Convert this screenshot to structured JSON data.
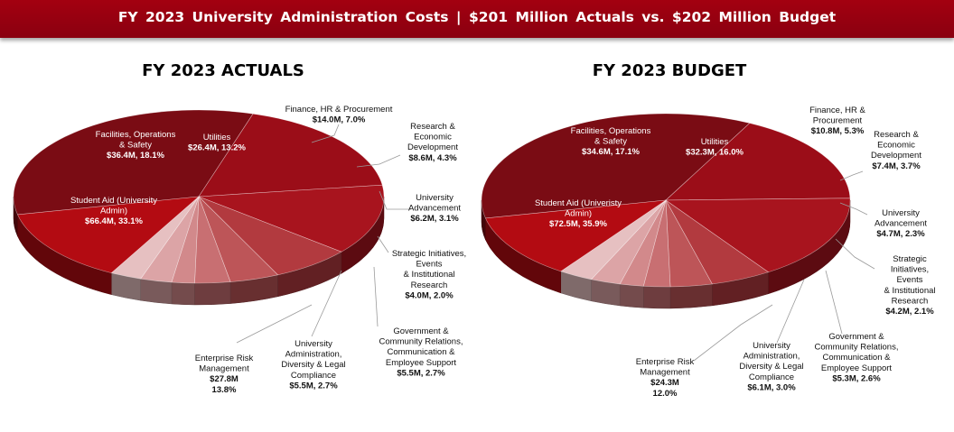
{
  "banner": "FY 2023 University  Administration  Costs | $201 Million  Actuals vs. $202 Million  Budget",
  "chart_data": [
    {
      "type": "pie",
      "title": "FY 2023 ACTUALS",
      "slices": [
        {
          "name": "Student Aid (University Admin)",
          "value_label": "$66.4M, 33.1%",
          "value": 66.4,
          "percent": 33.1,
          "color": "#7a0c14"
        },
        {
          "name": "Facilities, Operations & Safety",
          "value_label": "$36.4M, 18.1%",
          "value": 36.4,
          "percent": 18.1,
          "color": "#9b0d18"
        },
        {
          "name": "Utilities",
          "value_label": "$26.4M, 13.2%",
          "value": 26.4,
          "percent": 13.2,
          "color": "#a8141e"
        },
        {
          "name": "Finance, HR & Procurement",
          "value_label": "$14.0M, 7.0%",
          "value": 14.0,
          "percent": 7.0,
          "color": "#b23a3f"
        },
        {
          "name": "Research & Economic Development",
          "value_label": "$8.6M, 4.3%",
          "value": 8.6,
          "percent": 4.3,
          "color": "#bd5558"
        },
        {
          "name": "University Advancement",
          "value_label": "$6.2M, 3.1%",
          "value": 6.2,
          "percent": 3.1,
          "color": "#c86f72"
        },
        {
          "name": "Strategic Initiatives, Events & Institutional Research",
          "value_label": "$4.0M, 2.0%",
          "value": 4.0,
          "percent": 2.0,
          "color": "#d2898b"
        },
        {
          "name": "Government & Community Relations, Communication & Employee Support",
          "value_label": "$5.5M, 2.7%",
          "value": 5.5,
          "percent": 2.7,
          "color": "#dca4a6"
        },
        {
          "name": "University Administration, Diversity & Legal Compliance",
          "value_label": "$5.5M, 2.7%",
          "value": 5.5,
          "percent": 2.7,
          "color": "#e6c0c1"
        },
        {
          "name": "Enterprise Risk Management",
          "value_label": "$27.8M",
          "value_label_2": "13.8%",
          "value": 27.8,
          "percent": 13.8,
          "color": "#b30b12"
        }
      ]
    },
    {
      "type": "pie",
      "title": "FY 2023 BUDGET",
      "slices": [
        {
          "name": "Student Aid (Univeristy Admin)",
          "value_label": "$72.5M, 35.9%",
          "value": 72.5,
          "percent": 35.9,
          "color": "#7a0c14"
        },
        {
          "name": "Facilities, Operations & Safety",
          "value_label": "$34.6M, 17.1%",
          "value": 34.6,
          "percent": 17.1,
          "color": "#9b0d18"
        },
        {
          "name": "Utilities",
          "value_label": "$32.3M, 16.0%",
          "value": 32.3,
          "percent": 16.0,
          "color": "#a8141e"
        },
        {
          "name": "Finance, HR & Procurement",
          "value_label": "$10.8M, 5.3%",
          "value": 10.8,
          "percent": 5.3,
          "color": "#b23a3f"
        },
        {
          "name": "Research & Economic Development",
          "value_label": "$7.4M, 3.7%",
          "value": 7.4,
          "percent": 3.7,
          "color": "#bd5558"
        },
        {
          "name": "University Advancement",
          "value_label": "$4.7M, 2.3%",
          "value": 4.7,
          "percent": 2.3,
          "color": "#c86f72"
        },
        {
          "name": "Strategic Initiatives, Events & Institutional Research",
          "value_label": "$4.2M, 2.1%",
          "value": 4.2,
          "percent": 2.1,
          "color": "#d2898b"
        },
        {
          "name": "Government & Community Relations, Communication & Employee Support",
          "value_label": "$5.3M, 2.6%",
          "value": 5.3,
          "percent": 2.6,
          "color": "#dca4a6"
        },
        {
          "name": "University Administration, Diversity & Legal Compliance",
          "value_label": "$6.1M, 3.0%",
          "value": 6.1,
          "percent": 3.0,
          "color": "#e6c0c1"
        },
        {
          "name": "Enterprise Risk Management",
          "value_label": "$24.3M",
          "value_label_2": "12.0%",
          "value": 24.3,
          "percent": 12.0,
          "color": "#b30b12"
        }
      ]
    }
  ]
}
